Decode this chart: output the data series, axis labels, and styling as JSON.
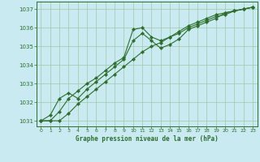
{
  "title": "Graphe pression niveau de la mer (hPa)",
  "background_color": "#c8eaf0",
  "grid_color": "#a0c8a8",
  "line_color": "#2d6e2d",
  "marker_color": "#2d6e2d",
  "ylim": [
    1030.7,
    1037.4
  ],
  "xlim": [
    -0.5,
    23.5
  ],
  "yticks": [
    1031,
    1032,
    1033,
    1034,
    1035,
    1036,
    1037
  ],
  "xticks": [
    0,
    1,
    2,
    3,
    4,
    5,
    6,
    7,
    8,
    9,
    10,
    11,
    12,
    13,
    14,
    15,
    16,
    17,
    18,
    19,
    20,
    21,
    22,
    23
  ],
  "series1_y": [
    1031.0,
    1031.0,
    1031.5,
    1032.2,
    1032.6,
    1033.0,
    1033.3,
    1033.7,
    1034.1,
    1034.4,
    1035.9,
    1036.0,
    1035.5,
    1035.3,
    1035.5,
    1035.8,
    1036.1,
    1036.3,
    1036.5,
    1036.7,
    1036.8,
    1036.9,
    1037.0,
    1037.1
  ],
  "series2_y": [
    1031.0,
    1031.3,
    1032.2,
    1032.5,
    1032.2,
    1032.7,
    1033.1,
    1033.5,
    1033.9,
    1034.3,
    1035.3,
    1035.7,
    1035.3,
    1034.9,
    1035.1,
    1035.4,
    1035.9,
    1036.1,
    1036.3,
    1036.5,
    1036.8,
    1036.9,
    1037.0,
    1037.1
  ],
  "series3_y": [
    1031.0,
    1031.0,
    1031.0,
    1031.4,
    1031.9,
    1032.3,
    1032.7,
    1033.1,
    1033.5,
    1033.9,
    1034.3,
    1034.7,
    1035.0,
    1035.2,
    1035.5,
    1035.7,
    1036.0,
    1036.2,
    1036.4,
    1036.6,
    1036.7,
    1036.9,
    1037.0,
    1037.1
  ]
}
